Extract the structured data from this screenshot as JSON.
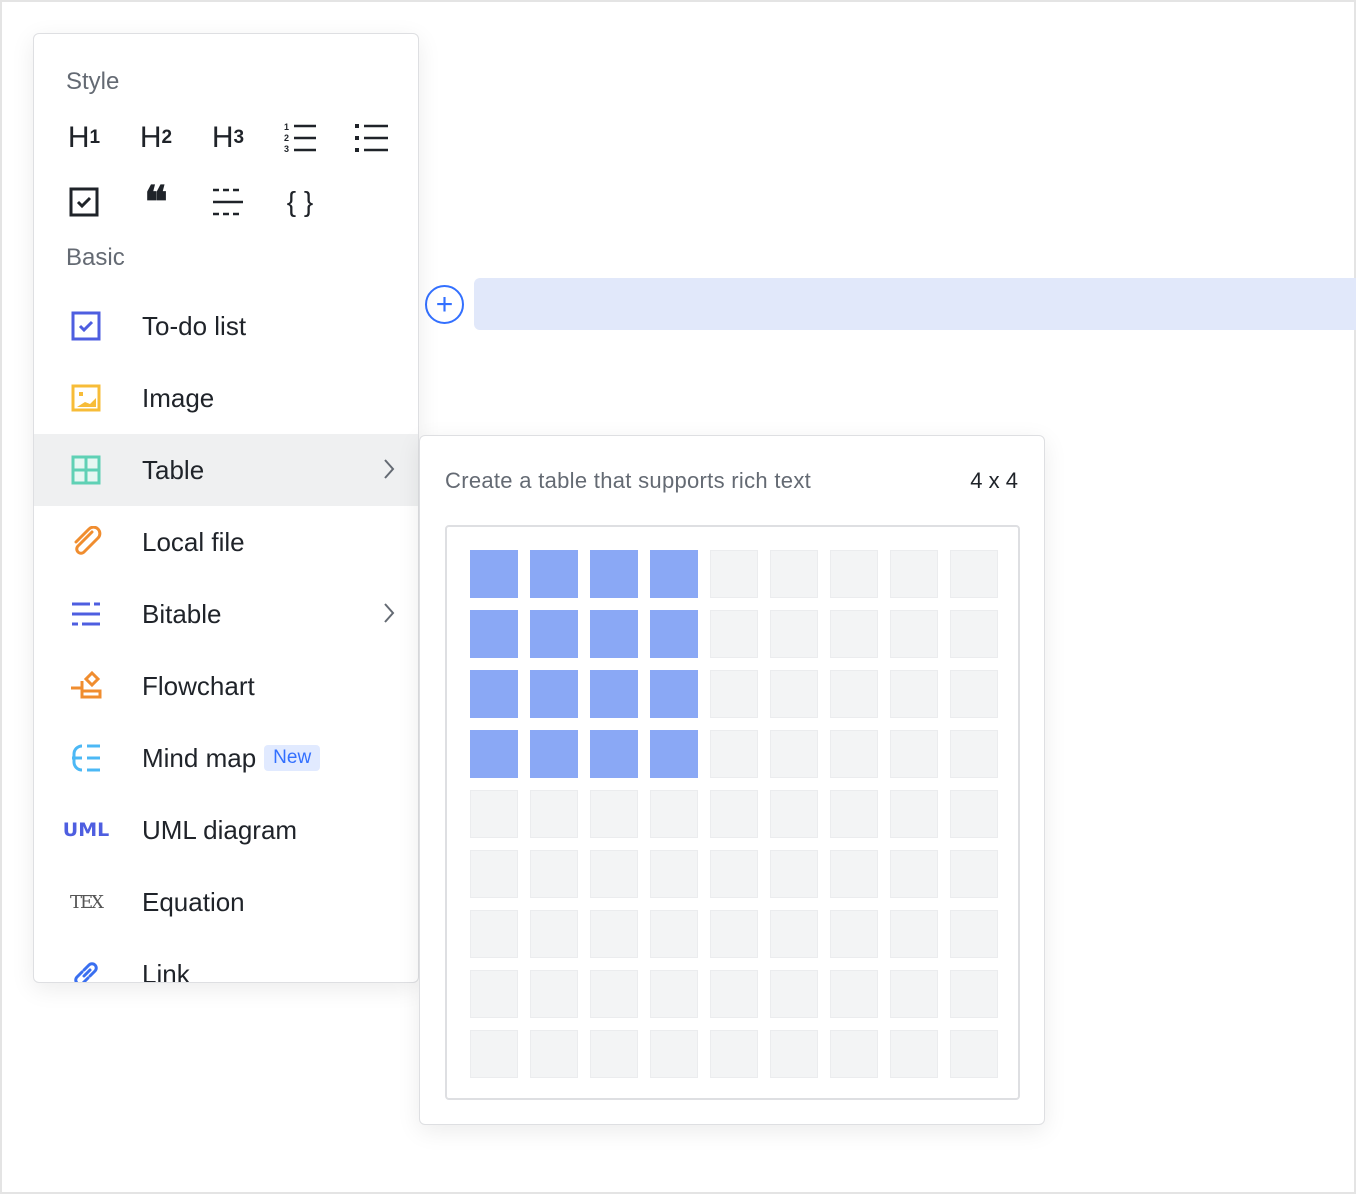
{
  "style_section": {
    "title": "Style",
    "icons": [
      "heading-1-icon",
      "heading-2-icon",
      "heading-3-icon",
      "ordered-list-icon",
      "bullet-list-icon",
      "checkbox-icon",
      "quote-icon",
      "divider-icon",
      "code-block-icon"
    ],
    "h1": "H",
    "h2": "H",
    "h3": "H",
    "n1": "1",
    "n2": "2",
    "n3": "3"
  },
  "basic_section": {
    "title": "Basic",
    "items": [
      {
        "label": "To-do list",
        "icon": "todo-icon",
        "color": "#4e5ee0"
      },
      {
        "label": "Image",
        "icon": "image-icon",
        "color": "#f7bc38"
      },
      {
        "label": "Table",
        "icon": "table-icon",
        "color": "#5fd1b5",
        "submenu": true,
        "active": true
      },
      {
        "label": "Local file",
        "icon": "paperclip-icon",
        "color": "#f08d2f"
      },
      {
        "label": "Bitable",
        "icon": "bitable-icon",
        "color": "#4e5ee0",
        "submenu": true
      },
      {
        "label": "Flowchart",
        "icon": "flowchart-icon",
        "color": "#f08d2f"
      },
      {
        "label": "Mind map",
        "icon": "mindmap-icon",
        "color": "#4cb8f5",
        "badge": "New"
      },
      {
        "label": "UML diagram",
        "icon": "uml-icon",
        "icon_text": "UML",
        "color": "#4e5ee0"
      },
      {
        "label": "Equation",
        "icon": "tex-icon",
        "icon_text": "TEX",
        "color": "#555"
      },
      {
        "label": "Link",
        "icon": "link-icon",
        "color": "#3a6ff0"
      }
    ]
  },
  "table_submenu": {
    "description": "Create a table that supports rich text",
    "size_label": "4 x 4",
    "rows": 9,
    "cols": 9,
    "selected_rows": 4,
    "selected_cols": 4,
    "selected_color": "#8aa8f5"
  },
  "add_block": {
    "icon": "plus-circle-icon",
    "symbol": "+",
    "color": "#3370ff"
  }
}
